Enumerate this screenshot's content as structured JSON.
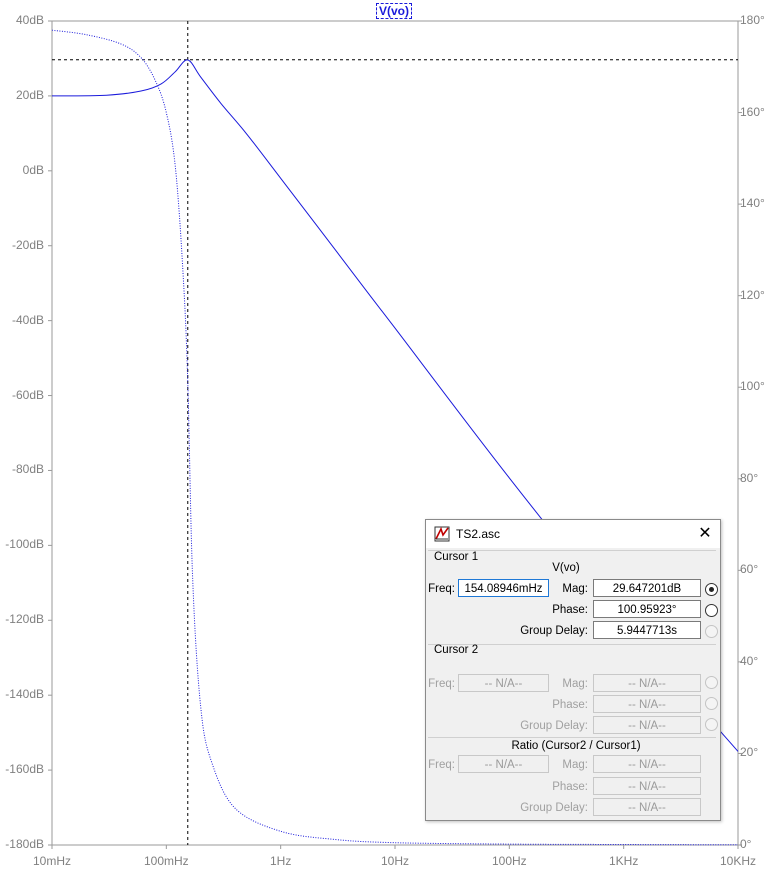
{
  "trace_label": "V(vo)",
  "chart_data": {
    "type": "line",
    "title": "V(vo)",
    "x_scale": "log",
    "xlim_hz": [
      0.01,
      10000
    ],
    "x_ticks": [
      "10mHz",
      "100mHz",
      "1Hz",
      "10Hz",
      "100Hz",
      "1KHz",
      "10KHz"
    ],
    "y_left": {
      "label": "",
      "unit": "dB",
      "ylim": [
        -180,
        40
      ],
      "ticks": [
        "40dB",
        "20dB",
        "0dB",
        "-20dB",
        "-40dB",
        "-60dB",
        "-80dB",
        "-100dB",
        "-120dB",
        "-140dB",
        "-160dB",
        "-180dB"
      ]
    },
    "y_right": {
      "label": "",
      "unit": "°",
      "ylim": [
        0,
        180
      ],
      "ticks": [
        "180°",
        "160°",
        "140°",
        "120°",
        "100°",
        "80°",
        "60°",
        "40°",
        "20°",
        "0°"
      ]
    },
    "grid": false,
    "series": [
      {
        "name": "magnitude",
        "axis": "left",
        "style": "solid",
        "color": "#1a1adb",
        "x": [
          0.01,
          0.03,
          0.06,
          0.09,
          0.12,
          0.154,
          0.2,
          0.3,
          0.5,
          1,
          2,
          5,
          10,
          100,
          1000,
          10000
        ],
        "y": [
          20,
          20.2,
          21.3,
          23.2,
          26.5,
          29.6,
          25,
          18,
          10,
          -2,
          -14,
          -30,
          -42,
          -82,
          -120,
          -155
        ]
      },
      {
        "name": "phase",
        "axis": "right",
        "style": "dotted",
        "color": "#1a1adb",
        "x": [
          0.01,
          0.02,
          0.04,
          0.06,
          0.08,
          0.1,
          0.12,
          0.14,
          0.154,
          0.17,
          0.2,
          0.25,
          0.4,
          1,
          3,
          10,
          100,
          1000,
          10000
        ],
        "y": [
          178,
          177,
          175,
          172,
          167,
          160,
          148,
          125,
          100.96,
          58,
          30,
          18,
          8,
          3,
          1.2,
          0.5,
          0.2,
          0.1,
          0.05
        ]
      }
    ],
    "cursor": {
      "freq_hz": 0.154,
      "mag_db": 29.65
    }
  },
  "dialog": {
    "title": "TS2.asc",
    "close_glyph": "✕",
    "cursor1": {
      "heading": "Cursor 1",
      "trace": "V(vo)",
      "freq_label": "Freq:",
      "freq_value": "154.08946mHz",
      "mag_label": "Mag:",
      "mag_value": "29.647201dB",
      "phase_label": "Phase:",
      "phase_value": "100.95923°",
      "gd_label": "Group Delay:",
      "gd_value": "5.9447713s"
    },
    "cursor2": {
      "heading": "Cursor 2",
      "freq_label": "Freq:",
      "freq_value": "-- N/A--",
      "mag_label": "Mag:",
      "mag_value": "-- N/A--",
      "phase_label": "Phase:",
      "phase_value": "-- N/A--",
      "gd_label": "Group Delay:",
      "gd_value": "-- N/A--"
    },
    "ratio": {
      "heading": "Ratio (Cursor2 / Cursor1)",
      "freq_label": "Freq:",
      "freq_value": "-- N/A--",
      "mag_label": "Mag:",
      "mag_value": "-- N/A--",
      "phase_label": "Phase:",
      "phase_value": "-- N/A--",
      "gd_label": "Group Delay:",
      "gd_value": "-- N/A--"
    }
  }
}
